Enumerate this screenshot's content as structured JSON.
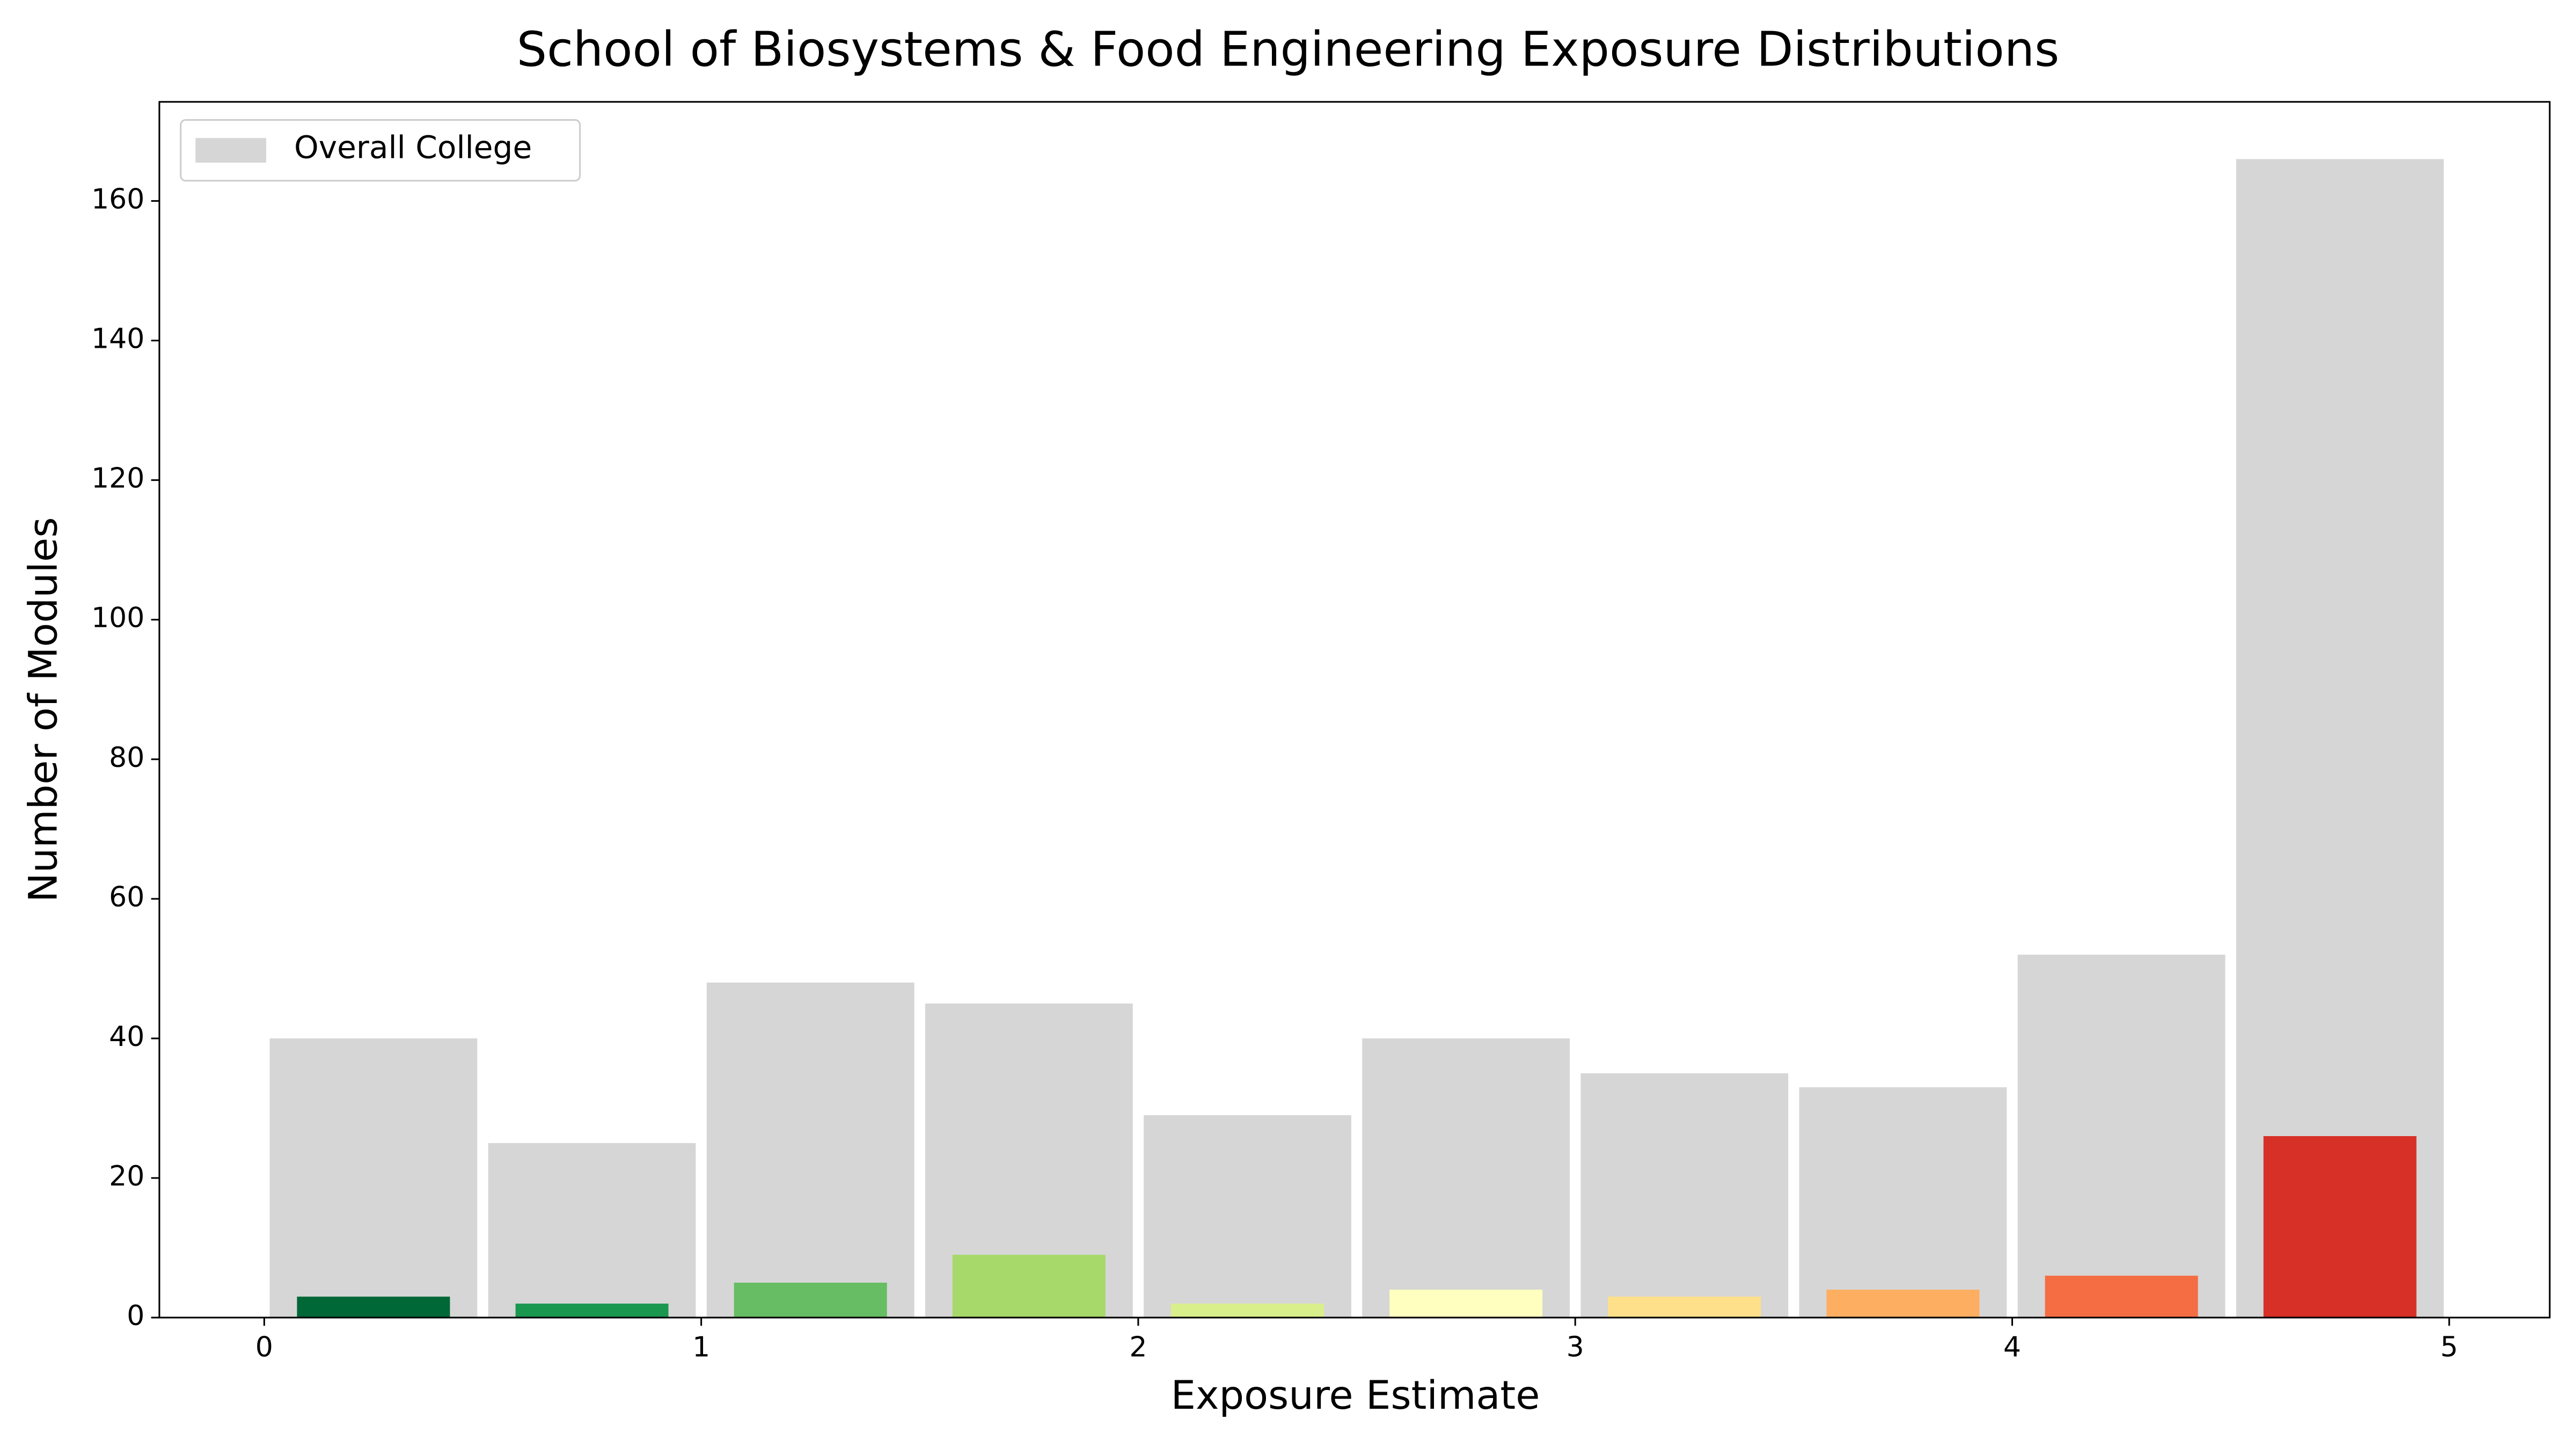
{
  "chart_data": {
    "type": "histogram",
    "title": "School of Biosystems & Food Engineering Exposure Distributions",
    "xlabel": "Exposure Estimate",
    "ylabel": "Number of Modules",
    "bins": [
      0,
      0.5,
      1,
      1.5,
      2,
      2.5,
      3,
      3.5,
      4,
      4.5,
      5
    ],
    "series": [
      {
        "name": "Overall College",
        "color": "#d6d6d6",
        "values": [
          40,
          25,
          48,
          45,
          29,
          40,
          35,
          33,
          52,
          166
        ]
      },
      {
        "colors": [
          "#006837",
          "#1a9850",
          "#66bd63",
          "#a6d96a",
          "#d9ef8b",
          "#ffffbf",
          "#fee08b",
          "#fdae61",
          "#f46d43",
          "#d73027"
        ],
        "values": [
          3,
          2,
          5,
          9,
          2,
          4,
          3,
          4,
          6,
          26
        ]
      }
    ],
    "xlim": [
      -0.24,
      5.23
    ],
    "ylim": [
      0,
      174.2
    ],
    "xticks": [
      0,
      1,
      2,
      3,
      4,
      5
    ],
    "yticks": [
      0,
      20,
      40,
      60,
      80,
      100,
      120,
      140,
      160
    ],
    "legend": "upper left",
    "grid": false
  }
}
